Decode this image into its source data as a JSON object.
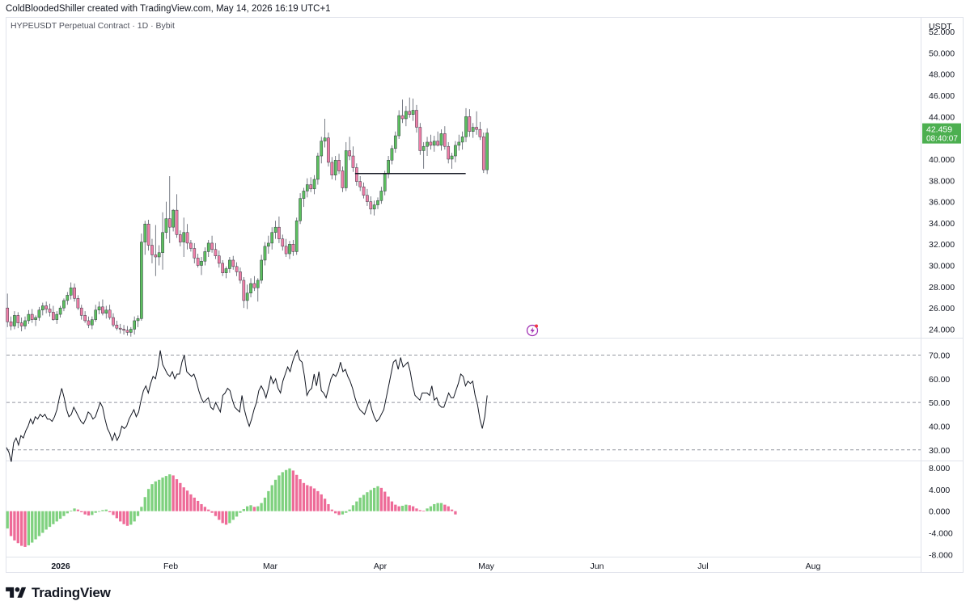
{
  "header": {
    "attribution": "ColdBloodedShiller created with TradingView.com, May 14, 2026 16:19 UTC+1"
  },
  "chart_data": {
    "type": "candlestick",
    "symbol_label": "HYPEUSDT Perpetual Contract · 1D · Bybit",
    "currency": "USDT",
    "price_axis": {
      "ticks": [
        "52.000",
        "50.000",
        "48.000",
        "46.000",
        "44.000",
        "42.000",
        "40.000",
        "38.000",
        "36.000",
        "34.000",
        "32.000",
        "30.000",
        "28.000",
        "26.000",
        "24.000"
      ],
      "range": [
        23.2,
        53.3
      ]
    },
    "last_price": {
      "value": "42.459",
      "countdown": "08:40:07",
      "color": "#4caf50"
    },
    "support_line": {
      "value": 38.65,
      "from_index": 99,
      "to_index": 129
    },
    "time_axis": [
      "2026",
      "Feb",
      "Mar",
      "Apr",
      "May",
      "Jun",
      "Jul",
      "Aug"
    ],
    "up_color": "#5cbf5f",
    "down_color": "#ef7fa8",
    "candles_ohlc": [
      [
        26.0,
        27.35,
        24.2,
        24.7
      ],
      [
        24.7,
        25.2,
        23.9,
        24.3
      ],
      [
        24.3,
        25.7,
        24.0,
        25.3
      ],
      [
        25.3,
        25.6,
        24.1,
        24.6
      ],
      [
        24.6,
        25.1,
        23.8,
        24.3
      ],
      [
        24.3,
        25.2,
        24.0,
        24.8
      ],
      [
        24.8,
        25.8,
        24.5,
        25.4
      ],
      [
        25.4,
        25.9,
        24.6,
        24.9
      ],
      [
        24.9,
        25.3,
        24.3,
        25.1
      ],
      [
        25.1,
        26.1,
        24.8,
        25.8
      ],
      [
        25.8,
        26.5,
        25.3,
        26.2
      ],
      [
        26.2,
        26.6,
        25.5,
        25.9
      ],
      [
        25.9,
        26.4,
        25.2,
        25.6
      ],
      [
        25.6,
        26.2,
        24.8,
        24.9
      ],
      [
        24.9,
        25.7,
        24.5,
        25.4
      ],
      [
        25.4,
        26.2,
        25.1,
        26.0
      ],
      [
        26.0,
        26.9,
        25.7,
        26.7
      ],
      [
        26.7,
        27.5,
        26.3,
        27.2
      ],
      [
        27.2,
        28.4,
        26.8,
        27.9
      ],
      [
        27.9,
        28.3,
        26.6,
        26.9
      ],
      [
        26.9,
        27.2,
        25.8,
        26.0
      ],
      [
        26.0,
        26.3,
        24.9,
        25.3
      ],
      [
        25.3,
        25.7,
        24.6,
        24.8
      ],
      [
        24.8,
        25.2,
        24.1,
        24.4
      ],
      [
        24.4,
        25.2,
        24.0,
        24.9
      ],
      [
        24.9,
        26.3,
        24.7,
        25.8
      ],
      [
        25.8,
        26.6,
        25.4,
        26.1
      ],
      [
        26.1,
        26.8,
        25.3,
        25.5
      ],
      [
        25.5,
        26.2,
        25.0,
        25.8
      ],
      [
        25.8,
        26.3,
        24.9,
        25.1
      ],
      [
        25.1,
        25.5,
        24.2,
        24.4
      ],
      [
        24.4,
        24.8,
        23.9,
        24.1
      ],
      [
        24.1,
        24.5,
        23.6,
        24.0
      ],
      [
        24.0,
        24.4,
        23.5,
        23.9
      ],
      [
        23.9,
        24.3,
        23.4,
        23.7
      ],
      [
        23.7,
        24.2,
        23.3,
        24.0
      ],
      [
        24.0,
        25.2,
        23.5,
        24.8
      ],
      [
        24.8,
        25.3,
        24.2,
        25.0
      ],
      [
        25.0,
        33.0,
        24.8,
        32.2
      ],
      [
        32.2,
        34.2,
        31.0,
        33.9
      ],
      [
        33.9,
        34.3,
        31.4,
        31.9
      ],
      [
        31.9,
        32.5,
        30.2,
        31.0
      ],
      [
        31.0,
        33.8,
        29.0,
        30.8
      ],
      [
        30.8,
        31.9,
        30.0,
        31.2
      ],
      [
        31.2,
        35.0,
        29.6,
        33.1
      ],
      [
        33.1,
        36.0,
        32.5,
        34.4
      ],
      [
        34.4,
        38.4,
        32.1,
        33.6
      ],
      [
        33.6,
        35.3,
        33.2,
        35.2
      ],
      [
        35.2,
        36.7,
        32.6,
        32.9
      ],
      [
        32.9,
        33.3,
        31.8,
        32.2
      ],
      [
        32.2,
        34.5,
        30.8,
        33.1
      ],
      [
        33.1,
        33.9,
        31.5,
        32.1
      ],
      [
        32.1,
        32.4,
        31.3,
        31.6
      ],
      [
        31.6,
        32.1,
        30.2,
        30.7
      ],
      [
        30.7,
        31.1,
        29.8,
        30.0
      ],
      [
        30.0,
        30.8,
        29.1,
        30.4
      ],
      [
        30.4,
        31.7,
        30.0,
        31.3
      ],
      [
        31.3,
        32.4,
        30.8,
        32.1
      ],
      [
        32.1,
        32.8,
        31.2,
        31.5
      ],
      [
        31.5,
        32.1,
        30.6,
        30.9
      ],
      [
        30.9,
        31.4,
        29.8,
        30.2
      ],
      [
        30.2,
        30.5,
        29.0,
        29.3
      ],
      [
        29.3,
        29.9,
        28.8,
        29.7
      ],
      [
        29.7,
        30.8,
        29.3,
        30.5
      ],
      [
        30.5,
        30.9,
        29.6,
        29.9
      ],
      [
        29.9,
        30.3,
        29.0,
        29.4
      ],
      [
        29.4,
        29.8,
        28.3,
        28.6
      ],
      [
        28.6,
        28.9,
        26.0,
        26.7
      ],
      [
        26.7,
        28.2,
        25.9,
        27.4
      ],
      [
        27.4,
        28.8,
        27.0,
        28.3
      ],
      [
        28.3,
        29.0,
        27.6,
        27.9
      ],
      [
        27.9,
        28.8,
        26.6,
        28.6
      ],
      [
        28.6,
        31.0,
        28.3,
        30.5
      ],
      [
        30.5,
        32.2,
        30.0,
        31.8
      ],
      [
        31.8,
        32.8,
        31.1,
        32.1
      ],
      [
        32.1,
        33.6,
        31.5,
        33.1
      ],
      [
        33.1,
        34.2,
        32.5,
        33.6
      ],
      [
        33.6,
        34.6,
        32.1,
        32.5
      ],
      [
        32.5,
        32.9,
        31.4,
        31.8
      ],
      [
        31.8,
        32.5,
        30.8,
        31.1
      ],
      [
        31.1,
        32.3,
        30.6,
        32.0
      ],
      [
        32.0,
        32.4,
        30.9,
        31.3
      ],
      [
        31.3,
        34.5,
        31.0,
        34.2
      ],
      [
        34.2,
        36.8,
        33.9,
        36.3
      ],
      [
        36.3,
        37.3,
        35.5,
        37.0
      ],
      [
        37.0,
        38.2,
        36.4,
        37.6
      ],
      [
        37.6,
        38.3,
        36.9,
        37.2
      ],
      [
        37.2,
        38.5,
        36.7,
        38.1
      ],
      [
        38.1,
        40.6,
        37.6,
        40.3
      ],
      [
        40.3,
        42.1,
        39.6,
        41.7
      ],
      [
        41.7,
        43.8,
        41.1,
        42.0
      ],
      [
        42.0,
        42.5,
        39.3,
        39.7
      ],
      [
        39.7,
        40.2,
        38.1,
        38.5
      ],
      [
        38.5,
        40.3,
        38.0,
        39.9
      ],
      [
        39.9,
        40.5,
        38.6,
        38.9
      ],
      [
        38.9,
        39.3,
        36.9,
        37.3
      ],
      [
        37.3,
        41.6,
        37.0,
        40.8
      ],
      [
        40.8,
        42.1,
        39.9,
        40.3
      ],
      [
        40.3,
        41.2,
        38.8,
        39.2
      ],
      [
        39.2,
        39.6,
        37.5,
        37.9
      ],
      [
        37.9,
        38.4,
        37.0,
        37.4
      ],
      [
        37.4,
        37.8,
        36.3,
        36.6
      ],
      [
        36.6,
        37.2,
        35.6,
        36.0
      ],
      [
        36.0,
        36.5,
        34.8,
        35.3
      ],
      [
        35.3,
        36.1,
        34.7,
        35.7
      ],
      [
        35.7,
        36.4,
        35.3,
        36.1
      ],
      [
        36.1,
        37.4,
        35.8,
        37.0
      ],
      [
        37.0,
        38.9,
        36.6,
        38.6
      ],
      [
        38.6,
        40.3,
        38.2,
        39.9
      ],
      [
        39.9,
        41.3,
        39.5,
        41.0
      ],
      [
        41.0,
        42.6,
        40.6,
        42.2
      ],
      [
        42.2,
        44.6,
        41.9,
        44.1
      ],
      [
        44.1,
        45.6,
        43.4,
        43.8
      ],
      [
        43.8,
        45.0,
        43.1,
        44.5
      ],
      [
        44.5,
        45.8,
        43.9,
        44.2
      ],
      [
        44.2,
        45.7,
        43.6,
        44.6
      ],
      [
        44.6,
        45.1,
        42.5,
        43.0
      ],
      [
        43.0,
        43.4,
        40.4,
        40.8
      ],
      [
        40.8,
        41.6,
        39.1,
        41.2
      ],
      [
        41.2,
        42.1,
        40.3,
        41.6
      ],
      [
        41.6,
        42.3,
        40.9,
        41.3
      ],
      [
        41.3,
        42.2,
        40.7,
        41.7
      ],
      [
        41.7,
        42.6,
        41.2,
        41.3
      ],
      [
        41.3,
        42.8,
        40.8,
        42.4
      ],
      [
        42.4,
        43.1,
        40.9,
        41.2
      ],
      [
        41.2,
        41.6,
        39.6,
        40.0
      ],
      [
        40.0,
        40.6,
        39.1,
        40.3
      ],
      [
        40.3,
        41.7,
        39.7,
        41.3
      ],
      [
        41.3,
        42.3,
        40.8,
        41.6
      ],
      [
        41.6,
        42.6,
        40.9,
        42.1
      ],
      [
        42.1,
        44.8,
        41.6,
        44.0
      ],
      [
        44.0,
        44.7,
        42.1,
        42.6
      ],
      [
        42.6,
        43.4,
        42.0,
        43.0
      ],
      [
        43.0,
        44.5,
        42.3,
        42.8
      ],
      [
        42.8,
        43.5,
        41.8,
        42.1
      ],
      [
        42.1,
        42.5,
        38.7,
        39.0
      ],
      [
        39.0,
        42.9,
        38.6,
        42.46
      ]
    ],
    "rsi": {
      "levels": [
        "70.00",
        "60.00",
        "50.00",
        "40.00",
        "30.00"
      ],
      "dashed_levels": [
        70,
        50,
        30
      ],
      "range": [
        25.5,
        77
      ],
      "values": [
        31,
        29,
        25,
        33,
        35,
        32,
        36,
        35,
        38,
        40,
        43,
        41,
        44,
        43,
        45,
        44,
        45,
        43,
        43,
        42,
        44,
        47,
        52,
        56,
        52,
        47,
        44,
        45,
        48,
        46,
        44,
        42,
        41,
        43,
        46,
        45,
        43,
        44,
        47,
        50,
        48,
        43,
        39,
        37,
        34,
        37,
        34,
        36,
        40,
        39,
        40,
        43,
        45,
        47,
        44,
        46,
        51,
        55,
        57,
        54,
        58,
        61,
        60,
        65,
        72,
        66,
        64,
        62,
        61,
        63,
        60,
        62,
        62,
        67,
        70,
        63,
        62,
        61,
        62,
        59,
        55,
        52,
        50,
        51,
        52,
        48,
        47,
        50,
        48,
        46,
        53,
        54,
        56,
        55,
        51,
        48,
        47,
        46,
        53,
        47,
        43,
        40,
        43,
        47,
        50,
        55,
        57,
        55,
        52,
        56,
        61,
        58,
        60,
        56,
        54,
        59,
        62,
        65,
        63,
        67,
        70,
        72,
        68,
        67,
        61,
        53,
        55,
        56,
        62,
        57,
        63,
        55,
        54,
        52,
        56,
        60,
        62,
        61,
        63,
        67,
        63,
        64,
        61,
        59,
        56,
        52,
        49,
        47,
        46,
        45,
        48,
        51,
        47,
        44,
        42,
        43,
        45,
        47,
        52,
        57,
        62,
        67,
        68,
        64,
        69,
        65,
        66,
        67,
        63,
        57,
        53,
        52,
        51,
        54,
        54,
        54,
        53,
        57,
        51,
        52,
        49,
        48,
        48,
        51,
        54,
        52,
        52,
        55,
        58,
        62,
        61,
        57,
        59,
        58,
        59,
        53,
        49,
        43,
        39,
        44,
        53
      ]
    },
    "macd_histogram": {
      "ticks": [
        "8.000",
        "4.000",
        "0.000",
        "-4.000",
        "-8.000"
      ],
      "range": [
        -8.4,
        9.2
      ],
      "values": [
        -3.2,
        -4.6,
        -5.4,
        -5.9,
        -6.4,
        -6.6,
        -6.3,
        -5.8,
        -5.2,
        -4.6,
        -4.0,
        -3.4,
        -2.9,
        -2.4,
        -1.9,
        -1.4,
        -0.9,
        -0.4,
        0.1,
        0.5,
        0.3,
        -0.2,
        -0.6,
        -0.8,
        -0.7,
        -0.3,
        -0.1,
        0.2,
        0.3,
        -0.2,
        -0.7,
        -1.3,
        -1.9,
        -2.4,
        -2.7,
        -2.5,
        -1.9,
        -0.9,
        0.8,
        2.6,
        4.1,
        5.0,
        5.5,
        5.8,
        6.2,
        6.5,
        6.8,
        6.6,
        5.9,
        5.2,
        4.4,
        3.8,
        3.1,
        2.5,
        1.9,
        1.3,
        0.8,
        0.3,
        -0.3,
        -0.9,
        -1.6,
        -2.2,
        -2.5,
        -2.2,
        -1.6,
        -1.0,
        -0.3,
        0.4,
        0.9,
        1.1,
        0.8,
        0.9,
        1.5,
        2.5,
        3.7,
        4.8,
        5.8,
        6.6,
        7.2,
        7.6,
        7.9,
        7.5,
        6.7,
        5.9,
        5.2,
        4.8,
        4.6,
        4.2,
        3.7,
        3.1,
        2.3,
        1.3,
        0.3,
        -0.4,
        -0.7,
        -0.6,
        -0.3,
        0.3,
        1.1,
        1.8,
        2.5,
        3.0,
        3.5,
        3.9,
        4.3,
        4.6,
        4.3,
        3.6,
        2.7,
        1.8,
        1.2,
        0.9,
        1.0,
        1.2,
        1.1,
        0.9,
        0.5,
        0.2,
        0.1,
        0.5,
        0.9,
        1.3,
        1.5,
        1.5,
        1.2,
        0.9,
        0.3,
        -0.6
      ]
    }
  },
  "footer": {
    "brand": "TradingView"
  }
}
